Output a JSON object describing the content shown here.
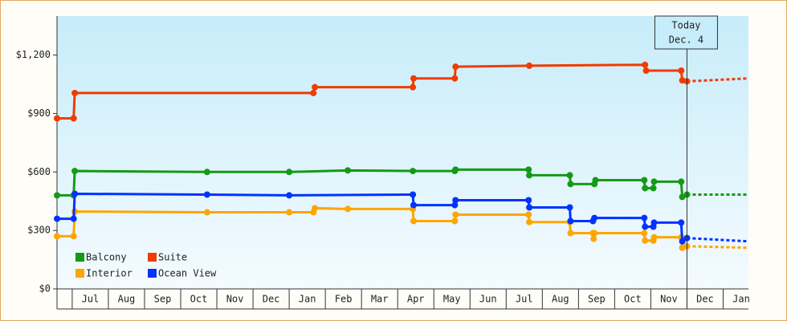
{
  "chart_data": {
    "type": "line",
    "xlim": [
      -0.42,
      18.7
    ],
    "xticks": [
      {
        "value": 0.5,
        "label": "Jul"
      },
      {
        "value": 1.5,
        "label": "Aug"
      },
      {
        "value": 2.5,
        "label": "Sep"
      },
      {
        "value": 3.5,
        "label": "Oct"
      },
      {
        "value": 4.5,
        "label": "Nov"
      },
      {
        "value": 5.5,
        "label": "Dec"
      },
      {
        "value": 6.5,
        "label": "Jan"
      },
      {
        "value": 7.5,
        "label": "Feb"
      },
      {
        "value": 8.5,
        "label": "Mar"
      },
      {
        "value": 9.5,
        "label": "Apr"
      },
      {
        "value": 10.5,
        "label": "May"
      },
      {
        "value": 11.5,
        "label": "Jun"
      },
      {
        "value": 12.5,
        "label": "Jul"
      },
      {
        "value": 13.5,
        "label": "Aug"
      },
      {
        "value": 14.5,
        "label": "Sep"
      },
      {
        "value": 15.5,
        "label": "Oct"
      },
      {
        "value": 16.5,
        "label": "Nov"
      },
      {
        "value": 17.5,
        "label": "Dec"
      },
      {
        "value": 18.5,
        "label": "Jan"
      }
    ],
    "ylim": [
      0,
      1400
    ],
    "yticks": [
      {
        "value": 0,
        "label": "$0"
      },
      {
        "value": 300,
        "label": "$300"
      },
      {
        "value": 600,
        "label": "$600"
      },
      {
        "value": 900,
        "label": "$900"
      },
      {
        "value": 1200,
        "label": "$1,200"
      }
    ],
    "legend": "lower left",
    "annotation": {
      "x": 17.0,
      "lines": [
        "Today",
        "Dec. 4"
      ]
    },
    "series": [
      {
        "name": "Balcony",
        "color": "#159a15",
        "x": [
          -0.42,
          0.04,
          0.07,
          3.73,
          6.0,
          7.62,
          9.42,
          10.58,
          10.6,
          12.62,
          12.64,
          13.76,
          13.78,
          14.44,
          14.47,
          15.82,
          15.84,
          16.07,
          16.09,
          16.84,
          16.87,
          17.0
        ],
        "values": [
          480,
          480,
          605,
          600,
          600,
          608,
          605,
          605,
          612,
          612,
          583,
          583,
          538,
          538,
          558,
          558,
          517,
          517,
          550,
          550,
          472,
          484
        ],
        "forecast_x": [
          17.0,
          18.7
        ],
        "forecast_values": [
          484,
          484
        ]
      },
      {
        "name": "Suite",
        "color": "#f03c00",
        "x": [
          -0.42,
          0.04,
          0.07,
          6.67,
          6.71,
          9.42,
          9.44,
          10.58,
          10.6,
          12.64,
          15.84,
          15.87,
          16.84,
          16.87,
          17.0
        ],
        "values": [
          875,
          875,
          1005,
          1005,
          1035,
          1035,
          1080,
          1080,
          1140,
          1145,
          1150,
          1120,
          1120,
          1070,
          1065
        ],
        "forecast_x": [
          17.0,
          18.7
        ],
        "forecast_values": [
          1065,
          1080
        ]
      },
      {
        "name": "Interior",
        "color": "#ffa500",
        "x": [
          -0.42,
          0.04,
          0.07,
          3.73,
          6.0,
          6.67,
          6.71,
          7.62,
          9.42,
          9.44,
          10.58,
          10.6,
          12.62,
          12.64,
          13.76,
          13.78,
          14.4,
          14.42,
          14.44,
          15.82,
          15.84,
          16.07,
          16.09,
          16.84,
          16.87,
          17.0
        ],
        "values": [
          270,
          270,
          397,
          393,
          393,
          393,
          414,
          410,
          410,
          348,
          348,
          381,
          381,
          343,
          343,
          286,
          286,
          257,
          286,
          286,
          248,
          248,
          265,
          265,
          211,
          219
        ],
        "forecast_x": [
          17.0,
          18.7
        ],
        "forecast_values": [
          219,
          211
        ]
      },
      {
        "name": "Ocean View",
        "color": "#0033ff",
        "x": [
          -0.42,
          0.04,
          0.07,
          3.73,
          6.0,
          9.42,
          9.44,
          10.58,
          10.6,
          12.62,
          12.64,
          13.76,
          13.78,
          14.4,
          14.44,
          15.82,
          15.84,
          16.07,
          16.09,
          16.84,
          16.87,
          17.0
        ],
        "values": [
          360,
          360,
          488,
          484,
          480,
          484,
          430,
          430,
          455,
          455,
          418,
          418,
          348,
          348,
          364,
          364,
          319,
          319,
          340,
          340,
          244,
          261
        ],
        "forecast_x": [
          17.0,
          18.7
        ],
        "forecast_values": [
          261,
          244
        ]
      }
    ]
  }
}
